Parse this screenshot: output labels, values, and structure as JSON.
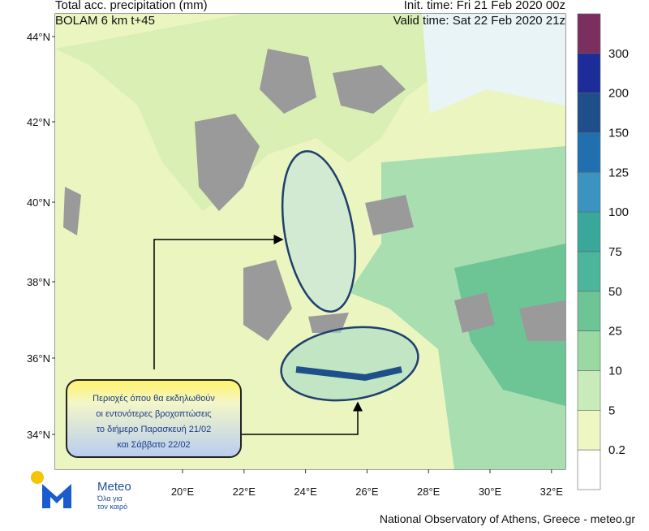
{
  "header": {
    "title": "Total acc. precipitation (mm)",
    "model": "BOLAM 6 km t+45",
    "init_time": "Init. time: Fri 21 Feb 2020 00z",
    "valid_time": "Valid time: Sat 22 Feb 2020 21z"
  },
  "map": {
    "lat_labels": [
      "44°N",
      "42°N",
      "40°N",
      "38°N",
      "36°N",
      "34°N"
    ],
    "lon_labels": [
      "20°E",
      "22°E",
      "24°E",
      "26°E",
      "28°E",
      "30°E",
      "32°E"
    ]
  },
  "colorbar": {
    "colors": [
      "#7b2f5f",
      "#1c2c98",
      "#1f4f8a",
      "#2070b0",
      "#3b93c0",
      "#3aa79b",
      "#4cb59b",
      "#6dc596",
      "#9ad9a2",
      "#c8ecb9",
      "#eef7c2",
      "#ffffff"
    ],
    "labels": [
      "300",
      "200",
      "150",
      "125",
      "100",
      "75",
      "50",
      "25",
      "10",
      "5",
      "0.2"
    ]
  },
  "annotation": {
    "lines": [
      "Περιοχές όπου θα εκδηλωθούν",
      "οι εντονότερες βροχοπτώσεις",
      "το διήμερο Παρασκευή 21/02",
      "και Σάββατο 22/02"
    ]
  },
  "logo": {
    "name": "Meteo",
    "tagline": [
      "Όλα για",
      "τον καιρό"
    ]
  },
  "footer": "National Observatory of Athens, Greece - meteo.gr"
}
